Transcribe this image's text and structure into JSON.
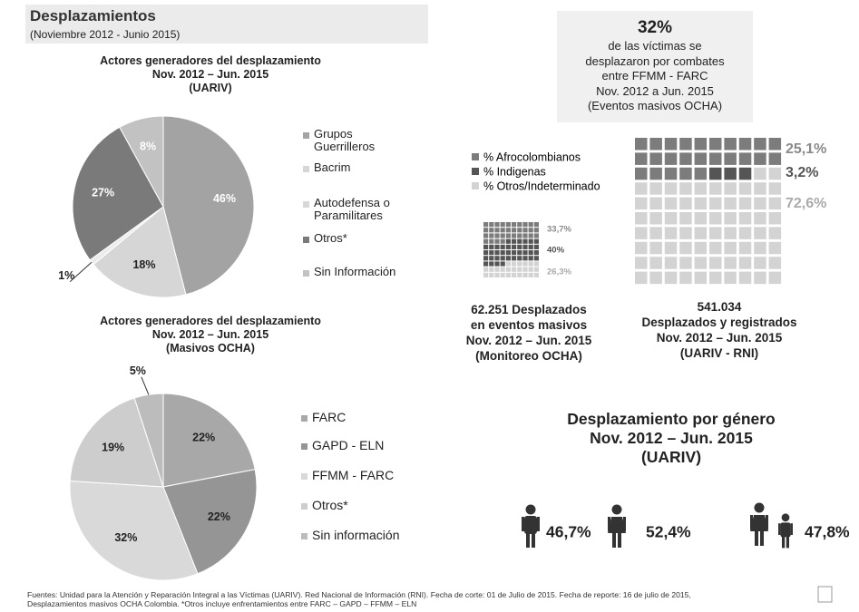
{
  "header": {
    "title": "Desplazamientos",
    "subtitle": "(Noviembre 2012 -  Junio 2015)"
  },
  "stat": {
    "value": "32%",
    "text": "de las víctimas se\ndesplazaron por combates\nentre FFMM - FARC\nNov. 2012 a Jun. 2015\n(Eventos masivos OCHA)"
  },
  "chart_data": [
    {
      "type": "pie",
      "title": "Actores generadores del desplazamiento\nNov. 2012 – Jun. 2015\n(UARIV)",
      "categories": [
        "Grupos Guerrilleros",
        "Bacrim",
        "Autodefensa o Paramilitares",
        "Otros*",
        "Sin Información"
      ],
      "values": [
        46,
        18,
        1,
        27,
        8
      ],
      "value_labels": [
        "46%",
        "18%",
        "1%",
        "27%",
        "8%"
      ],
      "colors": [
        "#a3a3a3",
        "#d6d6d6",
        "#ececec",
        "#7a7a7a",
        "#c2c2c2"
      ],
      "label_colors": [
        "#ffffff",
        "#222222",
        "#222222",
        "#ffffff",
        "#ffffff"
      ]
    },
    {
      "type": "pie",
      "title": "Actores generadores del desplazamiento\nNov. 2012 – Jun. 2015\n(Masivos OCHA)",
      "categories": [
        "FARC",
        "GAPD - ELN",
        "FFMM - FARC",
        "Otros*",
        "Sin información"
      ],
      "values": [
        22,
        22,
        32,
        19,
        5
      ],
      "value_labels": [
        "22%",
        "22%",
        "32%",
        "19%",
        "5%"
      ],
      "colors": [
        "#a8a8a8",
        "#959595",
        "#d9d9d9",
        "#cdcdcd",
        "#bcbcbc"
      ],
      "label_colors": [
        "#222222",
        "#222222",
        "#222222",
        "#222222",
        "#222222"
      ]
    },
    {
      "type": "waffle",
      "categories": [
        "% Afrocolombianos",
        "% Indigenas",
        "% Otros/Indeterminado"
      ],
      "colors": [
        "#7c7c7c",
        "#555555",
        "#d3d3d3"
      ],
      "label_colors": [
        "#8a8a8a",
        "#555555",
        "#aaaaaa"
      ],
      "series": [
        {
          "name": "62.251 Desplazados\nen eventos masivos\nNov. 2012 – Jun. 2015\n(Monitoreo OCHA)",
          "values": [
            33.7,
            40,
            26.3
          ],
          "value_labels": [
            "33,7%",
            "40%",
            "26,3%"
          ]
        },
        {
          "name": "541.034\nDesplazados y registrados\nNov. 2012 – Jun. 2015\n(UARIV - RNI)",
          "values": [
            25.1,
            3.2,
            72.6
          ],
          "value_labels": [
            "25,1%",
            "3,2%",
            "72,6%"
          ]
        }
      ]
    },
    {
      "type": "pictogram",
      "title": "Desplazamiento por género\nNov. 2012 – Jun. 2015\n(UARIV)",
      "values": [
        46.7,
        52.4,
        47.8
      ],
      "value_labels": [
        "46,7%",
        "52,4%",
        "47,8%"
      ],
      "color": "#333333"
    }
  ],
  "footer": "Fuentes: Unidad para la Atención y Reparación Integral a las Víctimas (UARIV). Red Nacional de Información (RNI). Fecha de corte: 01 de Julio de 2015. Fecha de reporte: 16 de julio  de 2015,\nDesplazamientos masivos OCHA Colombia. *Otros incluye enfrentamientos entre FARC – GAPD – FFMM – ELN"
}
